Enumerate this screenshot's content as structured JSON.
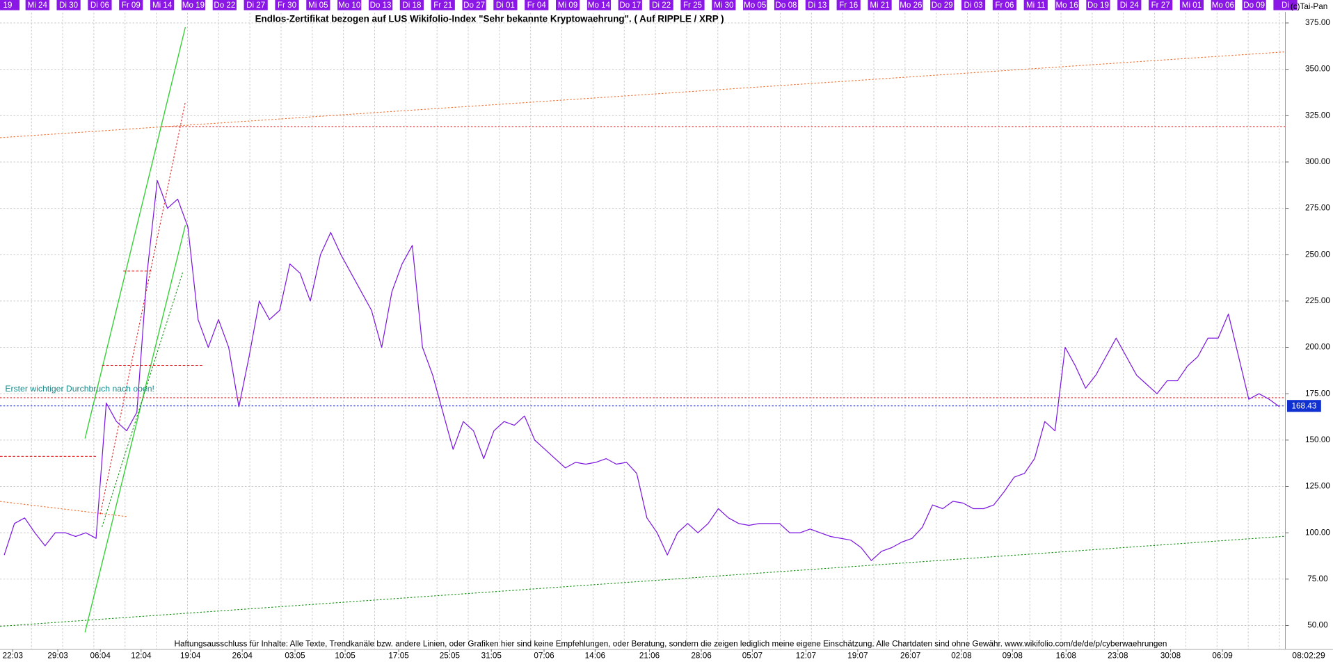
{
  "chart_data": {
    "type": "line",
    "title": "Endlos-Zertifikat bezogen auf LUS Wikifolio-Index \"Sehr bekannte Kryptowaehrung\". ( Auf RIPPLE / XRP )",
    "annotation": "Erster wichtiger Durchbruch nach oben!",
    "disclaimer": "Haftungsausschluss für Inhalte: Alle Texte, Trendkanäle bzw. andere Linien, oder Grafiken hier sind keine Empfehlungen, oder Beratung, sondern die zeigen lediglich meine eigene Einschätzung. Alle Chartdaten sind ohne Gewähr.  www.wikifolio.com/de/de/p/cyberwaehrungen",
    "copyright": "(c)Tai-Pan",
    "timestamp": "08:02:29",
    "top_labels": [
      "19",
      "Mi 24",
      "Di 30",
      "Di 06",
      "Fr 09",
      "Mi 14",
      "Mo 19",
      "Do 22",
      "Di 27",
      "Fr 30",
      "Mi 05",
      "Mo 10",
      "Do 13",
      "Di 18",
      "Fr 21",
      "Do 27",
      "Di 01",
      "Fr 04",
      "Mi 09",
      "Mo 14",
      "Do 17",
      "Di 22",
      "Fr 25",
      "Mi 30",
      "Mo 05",
      "Do 08",
      "Di 13",
      "Fr 16",
      "Mi 21",
      "Mo 26",
      "Do 29",
      "Di 03",
      "Fr 06",
      "Mi 11",
      "Mo 16",
      "Do 19",
      "Di 24",
      "Fr 27",
      "Mi 01",
      "Mo 06",
      "Do 09",
      "Di"
    ],
    "x_labels": [
      "22:03",
      "29:03",
      "06:04",
      "12:04",
      "19:04",
      "26:04",
      "03:05",
      "10:05",
      "17:05",
      "25:05",
      "31:05",
      "07:06",
      "14:06",
      "21:06",
      "28:06",
      "05:07",
      "12:07",
      "19:07",
      "26:07",
      "02:08",
      "09:08",
      "16:08",
      "23:08",
      "30:08",
      "06:09"
    ],
    "series": [
      {
        "color": "#7b16e0",
        "values": [
          88,
          105,
          108,
          100,
          93,
          100,
          100,
          98,
          100,
          97,
          170,
          160,
          155,
          165,
          240,
          290,
          275,
          280,
          265,
          215,
          200,
          215,
          200,
          168,
          195,
          225,
          215,
          220,
          245,
          240,
          225,
          250,
          262,
          250,
          240,
          230,
          220,
          200,
          230,
          245,
          255,
          200,
          185,
          165,
          145,
          160,
          155,
          140,
          155,
          160,
          158,
          163,
          150,
          145,
          140,
          135,
          138,
          137,
          138,
          140,
          137,
          138,
          132,
          108,
          100,
          88,
          100,
          105,
          100,
          105,
          113,
          108,
          105,
          104,
          105,
          105,
          105,
          100,
          100,
          102,
          100,
          98,
          97,
          96,
          92,
          85,
          90,
          92,
          95,
          97,
          103,
          115,
          113,
          117,
          116,
          113,
          113,
          115,
          122,
          130,
          132,
          140,
          160,
          155,
          200,
          190,
          178,
          185,
          195,
          205,
          195,
          185,
          180,
          175,
          182,
          182,
          190,
          195,
          205,
          205,
          218,
          195,
          172,
          175,
          172,
          168
        ]
      }
    ],
    "last_value": 168.43,
    "ylim": [
      44.5,
      380.5
    ],
    "yticks": [
      {
        "value": 50,
        "label": "50.00"
      },
      {
        "value": 75,
        "label": "75.00"
      },
      {
        "value": 100,
        "label": "100.00"
      },
      {
        "value": 125,
        "label": "125.00"
      },
      {
        "value": 150,
        "label": "150.00"
      },
      {
        "value": 175,
        "label": "175.00"
      },
      {
        "value": 200,
        "label": "200.00"
      },
      {
        "value": 225,
        "label": "225.00"
      },
      {
        "value": 250,
        "label": "250.00"
      },
      {
        "value": 275,
        "label": "275.00"
      },
      {
        "value": 300,
        "label": "300.00"
      },
      {
        "value": 325,
        "label": "325.00"
      },
      {
        "value": 350,
        "label": "350.00"
      },
      {
        "value": 375,
        "label": "375.00"
      }
    ],
    "grid": true
  }
}
